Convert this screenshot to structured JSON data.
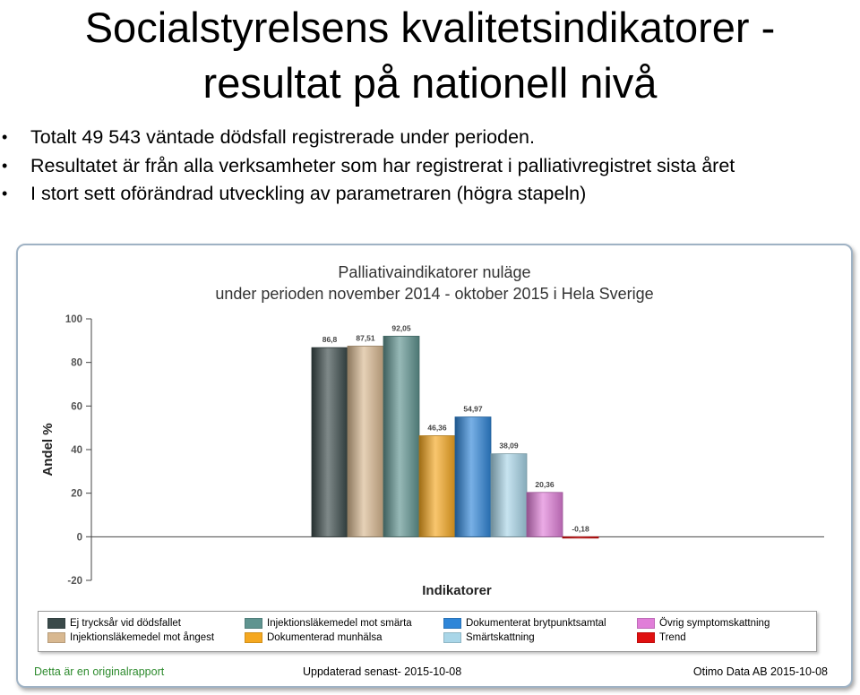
{
  "slide": {
    "title_line1": "Socialstyrelsens kvalitetsindikatorer  -",
    "title_line2": "resultat på nationell nivå",
    "bullets": [
      "Totalt 49 543 väntade dödsfall registrerade under perioden.",
      "Resultatet är från alla verksamheter som har registrerat i palliativregistret sista året",
      "I stort sett oförändrad utveckling av parametraren (högra  stapeln)"
    ]
  },
  "chart_data": {
    "type": "bar",
    "title": "Palliativaindikatorer nuläge",
    "subtitle": "under perioden november 2014 - oktober 2015 i Hela Sverige",
    "xlabel": "Indikatorer",
    "ylabel": "Andel %",
    "ylim": [
      -20,
      100
    ],
    "yticks": [
      -20,
      0,
      20,
      40,
      60,
      80,
      100
    ],
    "grid": false,
    "legend_position": "bottom",
    "series": [
      {
        "name": "Ej trycksår vid dödsfallet",
        "value": 86.8,
        "label": "86,8",
        "color": "#3a4a4a"
      },
      {
        "name": "Injektionsläkemedel mot ångest",
        "value": 87.51,
        "label": "87,51",
        "color": "#d8b890"
      },
      {
        "name": "Injektionsläkemedel mot smärta",
        "value": 92.05,
        "label": "92,05",
        "color": "#5f9490"
      },
      {
        "name": "Dokumenterad munhälsa",
        "value": 46.36,
        "label": "46,36",
        "color": "#f5a820"
      },
      {
        "name": "Dokumenterat brytpunktsamtal",
        "value": 54.97,
        "label": "54,97",
        "color": "#2f86d8"
      },
      {
        "name": "Smärtskattning",
        "value": 38.09,
        "label": "38,09",
        "color": "#a9d6e8"
      },
      {
        "name": "Övrig symptomskattning",
        "value": 20.36,
        "label": "20,36",
        "color": "#e07ed8"
      },
      {
        "name": "Trend",
        "value": -0.18,
        "label": "-0,18",
        "color": "#e01010"
      }
    ]
  },
  "footer": {
    "left": "Detta är en originalrapport",
    "center": "Uppdaterad senast- 2015-10-08",
    "right": "Otimo Data AB 2015-10-08"
  }
}
